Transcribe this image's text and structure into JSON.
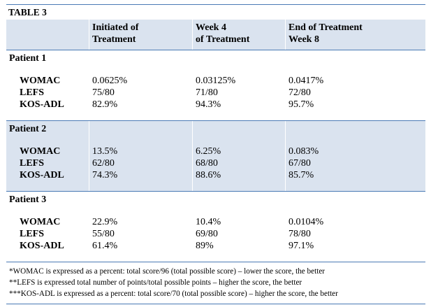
{
  "table": {
    "title": "TABLE 3",
    "headers": {
      "col0": "",
      "col1_line1": "Initiated of",
      "col1_line2": "Treatment",
      "col2_line1": "Week 4",
      "col2_line2": "of Treatment",
      "col3_line1": "End of Treatment",
      "col3_line2": "Week 8"
    },
    "patients": [
      {
        "name": "Patient 1",
        "rows": [
          {
            "measure": "WOMAC",
            "initiated": "0.0625%",
            "week4": "0.03125%",
            "week8": "0.0417%"
          },
          {
            "measure": "LEFS",
            "initiated": "75/80",
            "week4": "71/80",
            "week8": "72/80"
          },
          {
            "measure": "KOS-ADL",
            "initiated": "82.9%",
            "week4": "94.3%",
            "week8": "95.7%"
          }
        ]
      },
      {
        "name": "Patient 2",
        "rows": [
          {
            "measure": "WOMAC",
            "initiated": "13.5%",
            "week4": "6.25%",
            "week8": "0.083%"
          },
          {
            "measure": "LEFS",
            "initiated": "62/80",
            "week4": "68/80",
            "week8": "67/80"
          },
          {
            "measure": "KOS-ADL",
            "initiated": "74.3%",
            "week4": "88.6%",
            "week8": "85.7%"
          }
        ]
      },
      {
        "name": "Patient 3",
        "rows": [
          {
            "measure": "WOMAC",
            "initiated": "22.9%",
            "week4": "10.4%",
            "week8": "0.0104%"
          },
          {
            "measure": "LEFS",
            "initiated": "55/80",
            "week4": "69/80",
            "week8": "78/80"
          },
          {
            "measure": "KOS-ADL",
            "initiated": "61.4%",
            "week4": "89%",
            "week8": "97.1%"
          }
        ]
      }
    ],
    "footnotes": [
      "*WOMAC is expressed as a percent: total score/96 (total possible score) – lower the score, the better",
      "**LEFS is expressed total number of points/total possible points – higher the score, the better",
      "***KOS-ADL is expressed as a percent: total score/70 (total possible score) – higher the score, the better"
    ]
  },
  "colors": {
    "shade": "#dae3ef",
    "rule": "#4a7ab5"
  }
}
